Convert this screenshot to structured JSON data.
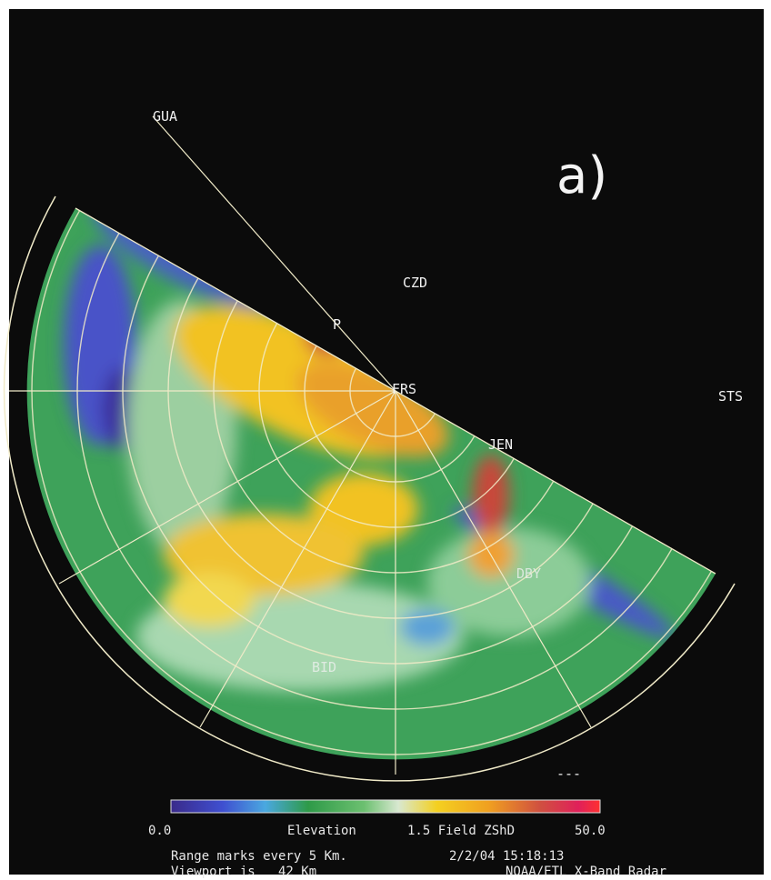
{
  "panel_label": "a)",
  "stations": [
    {
      "label": "GUA"
    },
    {
      "label": "CZD"
    },
    {
      "label": "P"
    },
    {
      "label": "FRS"
    },
    {
      "label": "STS"
    },
    {
      "label": "JEN"
    },
    {
      "label": "DBY"
    },
    {
      "label": "BID"
    }
  ],
  "marker": "---",
  "colorbar": {
    "min": "0.0",
    "max": "50.0"
  },
  "footer": {
    "elevation": "Elevation",
    "field": "1.5 Field ZShD",
    "range": "Range marks every 5 Km.",
    "datetime": "2/2/04 15:18:13",
    "viewport": "Viewport is   42 Km",
    "source": "NOAA/ETL X-Band Radar"
  }
}
